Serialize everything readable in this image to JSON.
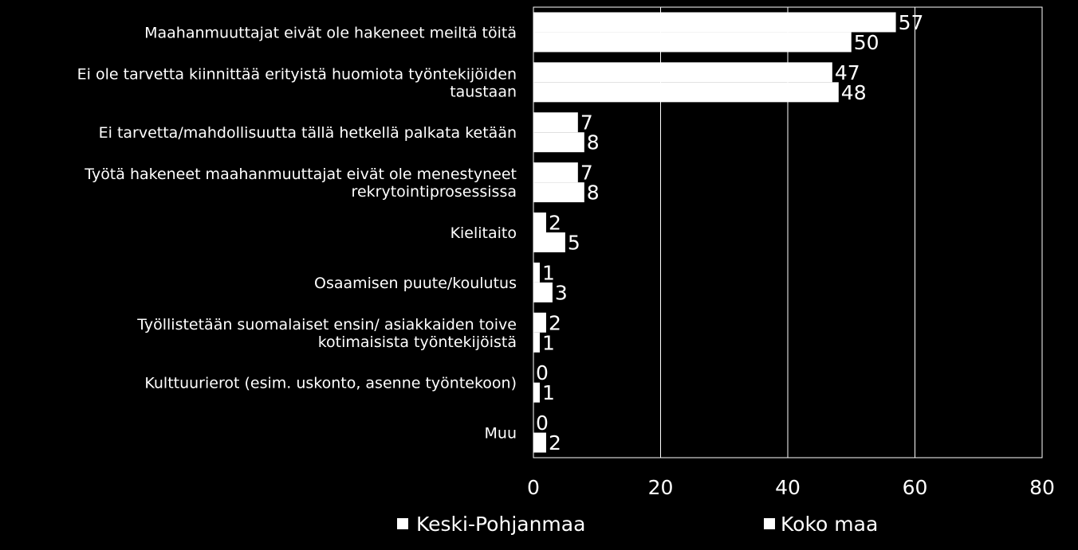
{
  "chart_data": {
    "type": "bar",
    "orientation": "horizontal",
    "categories": [
      [
        "Maahanmuuttajat eivät ole hakeneet meiltä töitä"
      ],
      [
        "Ei ole tarvetta kiinnittää erityistä huomiota työntekijöiden",
        "taustaan"
      ],
      [
        "Ei tarvetta/mahdollisuutta tällä hetkellä palkata ketään"
      ],
      [
        "Työtä hakeneet maahanmuuttajat eivät ole menestyneet",
        "rekrytointiprosessissa"
      ],
      [
        "Kielitaito"
      ],
      [
        "Osaamisen puute/koulutus"
      ],
      [
        "Työllistetään suomalaiset ensin/ asiakkaiden toive",
        "kotimaisista työntekijöistä"
      ],
      [
        "Kulttuurierot (esim. uskonto, asenne työntekoon)"
      ],
      [
        "Muu"
      ]
    ],
    "series": [
      {
        "name": "Keski-Pohjanmaa",
        "values": [
          57,
          47,
          7,
          7,
          2,
          1,
          2,
          0,
          0
        ]
      },
      {
        "name": "Koko maa",
        "values": [
          50,
          48,
          8,
          8,
          5,
          3,
          1,
          1,
          2
        ]
      }
    ],
    "xlim": [
      0,
      80
    ],
    "xticks": [
      "0",
      "20",
      "40",
      "60",
      "80"
    ],
    "grid": true,
    "legend_position": "bottom",
    "colors": {
      "background": "#000000",
      "bars": "#ffffff",
      "text": "#ffffff",
      "gridlines": "#ffffff"
    }
  }
}
